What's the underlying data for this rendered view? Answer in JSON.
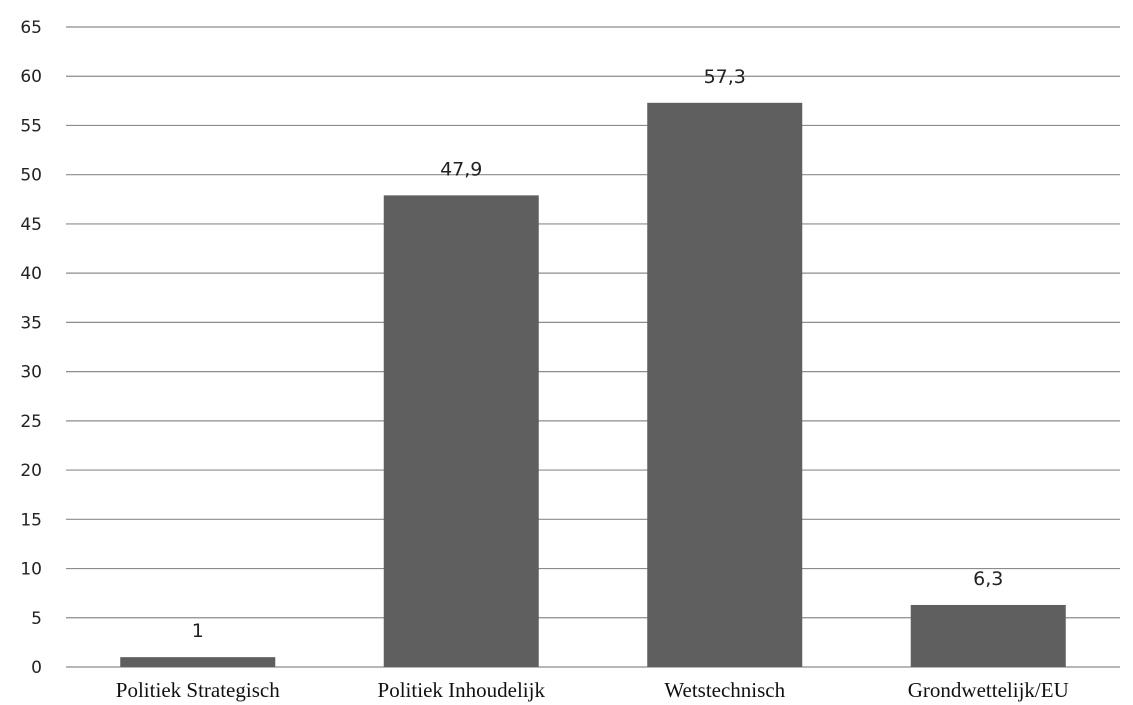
{
  "chart_data": {
    "type": "bar",
    "title": "",
    "xlabel": "",
    "ylabel": "",
    "categories": [
      "Politiek Strategisch",
      "Politiek Inhoudelijk",
      "Wetstechnisch",
      "Grondwettelijk/EU"
    ],
    "values": [
      1,
      47.9,
      57.3,
      6.3
    ],
    "value_labels": [
      "1",
      "47,9",
      "57,3",
      "6,3"
    ],
    "ylim": [
      0,
      65
    ],
    "yticks": [
      0,
      5,
      10,
      15,
      20,
      25,
      30,
      35,
      40,
      45,
      50,
      55,
      60,
      65
    ],
    "grid": true,
    "legend": "none",
    "bar_color": "#5f5f5f",
    "grid_color": "#8c8c8c"
  }
}
